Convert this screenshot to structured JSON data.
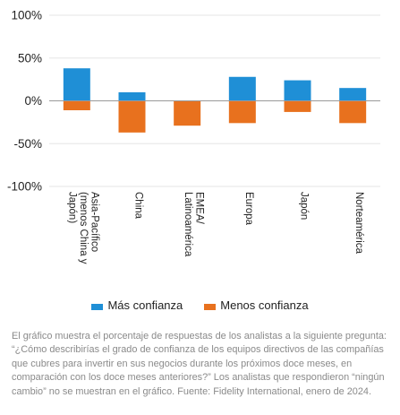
{
  "chart_data": {
    "type": "bar",
    "categories": [
      [
        "Asia-Pacífico",
        "(menos China y",
        "Japón)"
      ],
      [
        "China"
      ],
      [
        "EMEA/",
        "Latinoamérica"
      ],
      [
        "Europa"
      ],
      [
        "Japón"
      ],
      [
        "Norteamérica"
      ]
    ],
    "series": [
      {
        "name": "Más confianza",
        "color": "#1f8fd6",
        "values": [
          38,
          10,
          0,
          28,
          24,
          15
        ]
      },
      {
        "name": "Menos confianza",
        "color": "#e8711e",
        "values": [
          -11,
          -37,
          -29,
          -26,
          -13,
          -26
        ]
      }
    ],
    "ylim": [
      -100,
      100
    ],
    "yticks": [
      100,
      50,
      0,
      -50,
      -100
    ],
    "ytick_labels": [
      "100%",
      "50%",
      "0%",
      "-50%",
      "-100%"
    ],
    "grid": true,
    "legend_position": "bottom"
  },
  "caption": "El gráfico muestra el porcentaje de respuestas de los analistas a la siguiente pregunta: “¿Cómo describirías el grado de confianza de los equipos directivos de las compañías que cubres para invertir en sus negocios durante los próximos doce meses, en comparación con los doce meses anteriores?” Los analistas que respondieron “ningún cambio” no se muestran en el gráfico. Fuente: Fidelity International, enero de 2024."
}
